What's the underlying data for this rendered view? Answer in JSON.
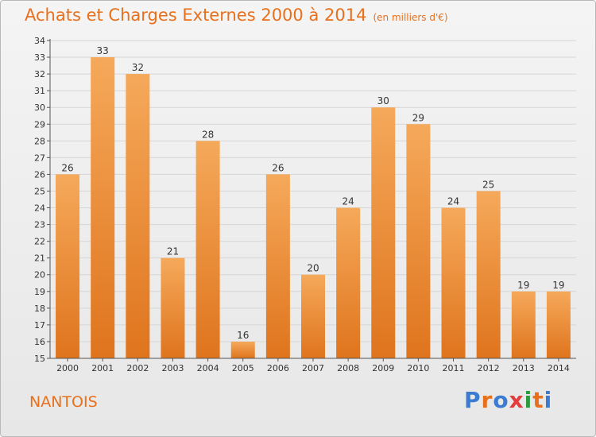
{
  "header": {
    "title": "Achats et Charges Externes 2000 à 2014",
    "unit": "(en milliers d'€)"
  },
  "footer": {
    "city": "NANTOIS",
    "logo": "Proxiti",
    "logo_colors": [
      "#3b7bd1",
      "#e8701c",
      "#3b7bd1",
      "#e23c3c",
      "#2e9a3c",
      "#e8701c",
      "#3b7bd1"
    ]
  },
  "colors": {
    "accent": "#e8701c",
    "bar_top": "#f5a95a",
    "bar_bottom": "#df741d",
    "grid": "#d6d6d6",
    "axis": "#555555"
  },
  "chart_data": {
    "type": "bar",
    "title": "Achats et Charges Externes 2000 à 2014",
    "xlabel": "",
    "ylabel": "",
    "categories": [
      "2000",
      "2001",
      "2002",
      "2003",
      "2004",
      "2005",
      "2006",
      "2007",
      "2008",
      "2009",
      "2010",
      "2011",
      "2012",
      "2013",
      "2014"
    ],
    "values": [
      26,
      33,
      32,
      21,
      28,
      16,
      26,
      20,
      24,
      30,
      29,
      24,
      25,
      19,
      19
    ],
    "ylim": [
      15,
      34
    ],
    "yticks": [
      15,
      16,
      17,
      18,
      19,
      20,
      21,
      22,
      23,
      24,
      25,
      26,
      27,
      28,
      29,
      30,
      31,
      32,
      33,
      34
    ],
    "grid": true,
    "legend": "none"
  }
}
